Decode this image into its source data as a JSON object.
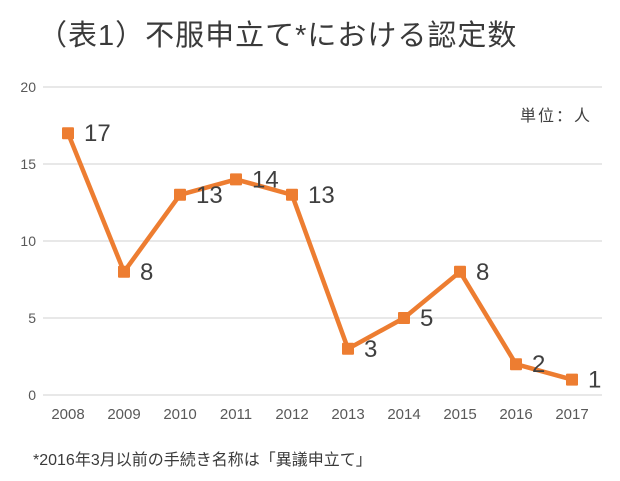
{
  "title": "（表1）不服申立て*における認定数",
  "unit_label": "単位：人",
  "footnote": "*2016年3月以前の手続き名称は「異議申立て」",
  "colors": {
    "line": "#ED7D31",
    "marker": "#ED7D31",
    "gridline": "#D9D9D9",
    "axis_text": "#595959",
    "data_label_text": "#3f3f3f",
    "title_text": "#3a3a3a",
    "background": "#FFFFFF"
  },
  "chart_data": {
    "type": "line",
    "title": "（表1）不服申立て*における認定数",
    "unit": "単位：人",
    "categories": [
      "2008",
      "2009",
      "2010",
      "2011",
      "2012",
      "2013",
      "2014",
      "2015",
      "2016",
      "2017"
    ],
    "values": [
      17,
      8,
      13,
      14,
      13,
      3,
      5,
      8,
      2,
      1
    ],
    "xlabel": "",
    "ylabel": "",
    "ylim": [
      0,
      20
    ],
    "yticks": [
      0,
      5,
      10,
      15,
      20
    ],
    "grid": true,
    "legend": "none",
    "marker": "square",
    "data_labels": true,
    "footnote": "*2016年3月以前の手続き名称は「異議申立て」"
  }
}
